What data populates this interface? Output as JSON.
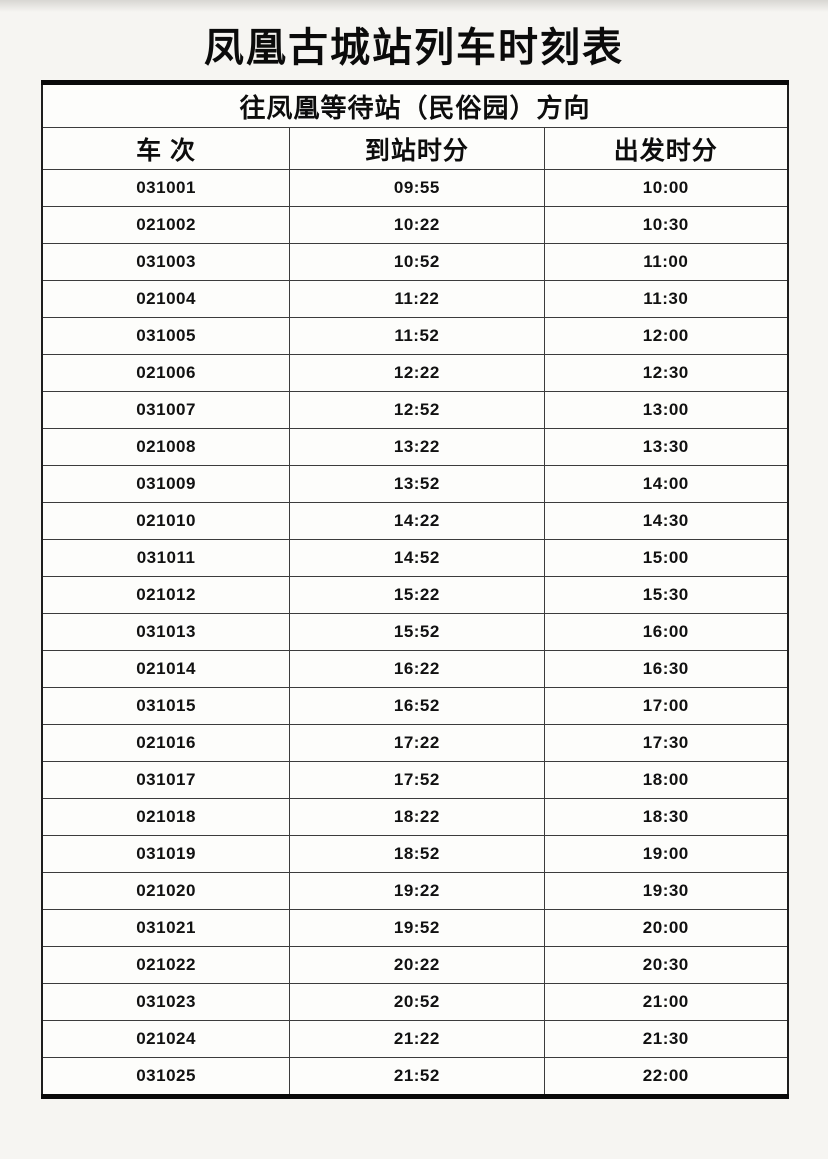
{
  "page": {
    "title": "凤凰古城站列车时刻表"
  },
  "table": {
    "direction_header": "往凤凰等待站（民俗园）方向",
    "columns": [
      "车 次",
      "到站时分",
      "出发时分"
    ],
    "rows": [
      {
        "train_no": "031001",
        "arrival": "09:55",
        "departure": "10:00"
      },
      {
        "train_no": "021002",
        "arrival": "10:22",
        "departure": "10:30"
      },
      {
        "train_no": "031003",
        "arrival": "10:52",
        "departure": "11:00"
      },
      {
        "train_no": "021004",
        "arrival": "11:22",
        "departure": "11:30"
      },
      {
        "train_no": "031005",
        "arrival": "11:52",
        "departure": "12:00"
      },
      {
        "train_no": "021006",
        "arrival": "12:22",
        "departure": "12:30"
      },
      {
        "train_no": "031007",
        "arrival": "12:52",
        "departure": "13:00"
      },
      {
        "train_no": "021008",
        "arrival": "13:22",
        "departure": "13:30"
      },
      {
        "train_no": "031009",
        "arrival": "13:52",
        "departure": "14:00"
      },
      {
        "train_no": "021010",
        "arrival": "14:22",
        "departure": "14:30"
      },
      {
        "train_no": "031011",
        "arrival": "14:52",
        "departure": "15:00"
      },
      {
        "train_no": "021012",
        "arrival": "15:22",
        "departure": "15:30"
      },
      {
        "train_no": "031013",
        "arrival": "15:52",
        "departure": "16:00"
      },
      {
        "train_no": "021014",
        "arrival": "16:22",
        "departure": "16:30"
      },
      {
        "train_no": "031015",
        "arrival": "16:52",
        "departure": "17:00"
      },
      {
        "train_no": "021016",
        "arrival": "17:22",
        "departure": "17:30"
      },
      {
        "train_no": "031017",
        "arrival": "17:52",
        "departure": "18:00"
      },
      {
        "train_no": "021018",
        "arrival": "18:22",
        "departure": "18:30"
      },
      {
        "train_no": "031019",
        "arrival": "18:52",
        "departure": "19:00"
      },
      {
        "train_no": "021020",
        "arrival": "19:22",
        "departure": "19:30"
      },
      {
        "train_no": "031021",
        "arrival": "19:52",
        "departure": "20:00"
      },
      {
        "train_no": "021022",
        "arrival": "20:22",
        "departure": "20:30"
      },
      {
        "train_no": "031023",
        "arrival": "20:52",
        "departure": "21:00"
      },
      {
        "train_no": "021024",
        "arrival": "21:22",
        "departure": "21:30"
      },
      {
        "train_no": "031025",
        "arrival": "21:52",
        "departure": "22:00"
      }
    ]
  },
  "colors": {
    "page_background": "#f6f5f2",
    "table_background": "#fdfdfb",
    "text": "#0d0d0d",
    "outer_border": "#0a0a0a",
    "inner_border": "#3c3c3c"
  }
}
